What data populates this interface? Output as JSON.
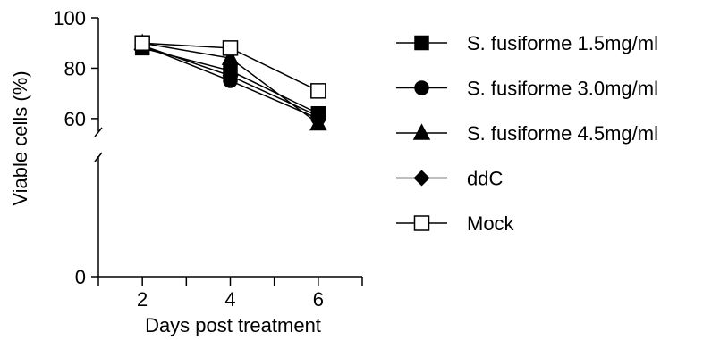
{
  "chart_data": {
    "type": "line",
    "title": "",
    "xlabel": "Days post treatment",
    "ylabel": "Viable cells (%)",
    "x": [
      2,
      4,
      6
    ],
    "x_ticks": [
      "2",
      "4",
      "6"
    ],
    "y_ticks": [
      "0",
      "60",
      "80",
      "100"
    ],
    "ylim": [
      0,
      100
    ],
    "y_axis_break": [
      0,
      50
    ],
    "grid": false,
    "legend_position": "right",
    "series": [
      {
        "name": "S. fusiforme 1.5mg/ml",
        "values": [
          88,
          79,
          62
        ],
        "marker": "square",
        "filled": true
      },
      {
        "name": "S. fusiforme 3.0mg/ml",
        "values": [
          89,
          75,
          60
        ],
        "marker": "circle",
        "filled": true
      },
      {
        "name": "S. fusiforme 4.5mg/ml",
        "values": [
          90,
          84,
          58
        ],
        "marker": "triangle",
        "filled": true
      },
      {
        "name": "ddC",
        "values": [
          89,
          77,
          61
        ],
        "marker": "diamond",
        "filled": true
      },
      {
        "name": "Mock",
        "values": [
          90,
          88,
          71
        ],
        "marker": "square",
        "filled": false
      }
    ],
    "color": "#000000"
  }
}
